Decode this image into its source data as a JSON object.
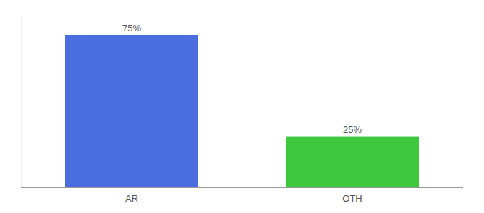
{
  "chart_data": {
    "type": "bar",
    "categories": [
      "AR",
      "OTH"
    ],
    "values": [
      75,
      25
    ],
    "value_labels": [
      "75%",
      "25%"
    ],
    "colors": [
      "#4a6ee0",
      "#3dc83d"
    ],
    "ylim": [
      0,
      84
    ],
    "data_labels": true,
    "tick_labels": "x"
  }
}
